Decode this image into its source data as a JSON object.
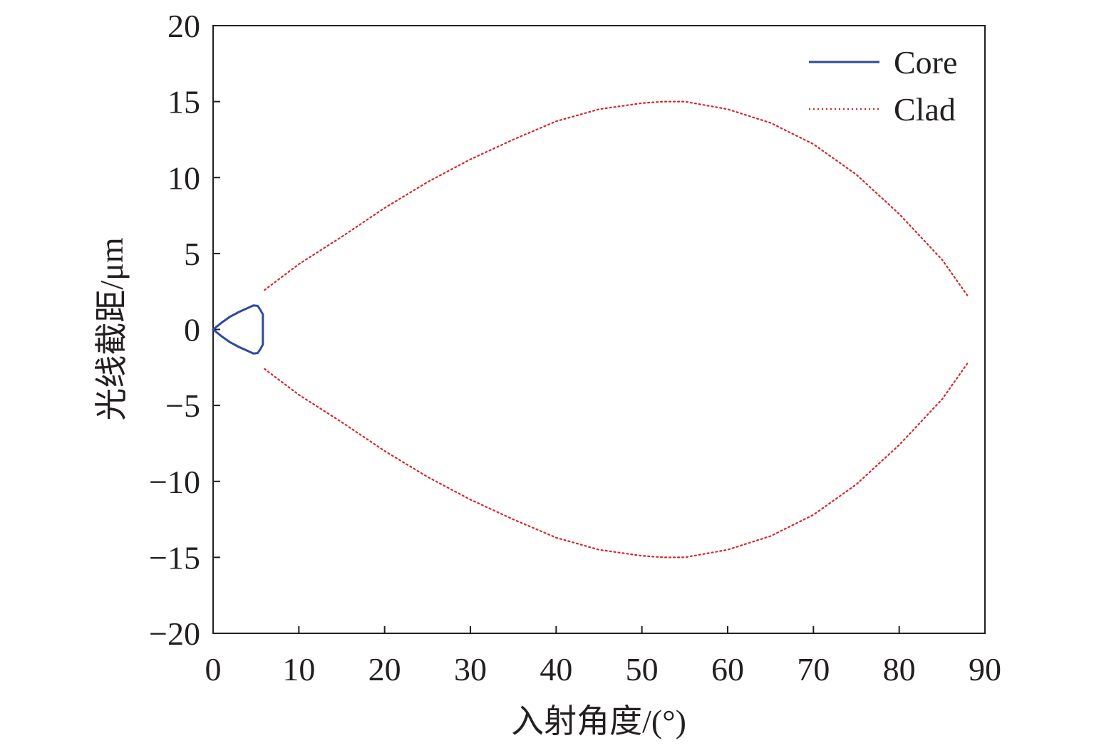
{
  "chart_data": {
    "type": "line",
    "xlabel": "入射角度/(°)",
    "ylabel": "光线截距/μm",
    "xlim": [
      0,
      90
    ],
    "ylim": [
      -20,
      20
    ],
    "xticks": [
      0,
      10,
      20,
      30,
      40,
      50,
      60,
      70,
      80,
      90
    ],
    "yticks": [
      -20,
      -15,
      -10,
      -5,
      0,
      5,
      10,
      15,
      20
    ],
    "ytick_labels": [
      "−20",
      "−15",
      "−10",
      "−5",
      "0",
      "5",
      "10",
      "15",
      "20"
    ],
    "grid": false,
    "legend_position": "top-right",
    "series": [
      {
        "name": "Core",
        "color": "#2e4a9e",
        "style": "solid",
        "x": [
          0,
          1,
          2,
          3,
          4,
          4.7,
          5.2,
          5.5,
          5.8,
          5.8,
          5.8,
          5.5,
          5.2,
          4.7,
          4,
          3,
          2,
          1,
          0
        ],
        "y": [
          0,
          0.45,
          0.85,
          1.15,
          1.4,
          1.58,
          1.55,
          1.3,
          1.0,
          0,
          -1.0,
          -1.3,
          -1.55,
          -1.58,
          -1.4,
          -1.15,
          -0.85,
          -0.45,
          0
        ]
      },
      {
        "name": "Clad",
        "color": "#d7262b",
        "style": "dotted",
        "segments": [
          {
            "x": [
              6,
              10,
              15,
              20,
              25,
              30,
              35,
              40,
              45,
              50,
              52.5,
              55,
              60,
              65,
              70,
              75,
              80,
              85,
              88
            ],
            "y": [
              2.6,
              4.3,
              6.1,
              8.0,
              9.7,
              11.2,
              12.5,
              13.7,
              14.5,
              14.9,
              15.0,
              15.0,
              14.5,
              13.6,
              12.2,
              10.2,
              7.6,
              4.6,
              2.2
            ]
          },
          {
            "x": [
              6,
              10,
              15,
              20,
              25,
              30,
              35,
              40,
              45,
              50,
              52.5,
              55,
              60,
              65,
              70,
              75,
              80,
              85,
              88
            ],
            "y": [
              -2.6,
              -4.3,
              -6.1,
              -8.0,
              -9.7,
              -11.2,
              -12.5,
              -13.7,
              -14.5,
              -14.9,
              -15.0,
              -15.0,
              -14.5,
              -13.6,
              -12.2,
              -10.2,
              -7.6,
              -4.6,
              -2.2
            ]
          }
        ]
      }
    ]
  }
}
